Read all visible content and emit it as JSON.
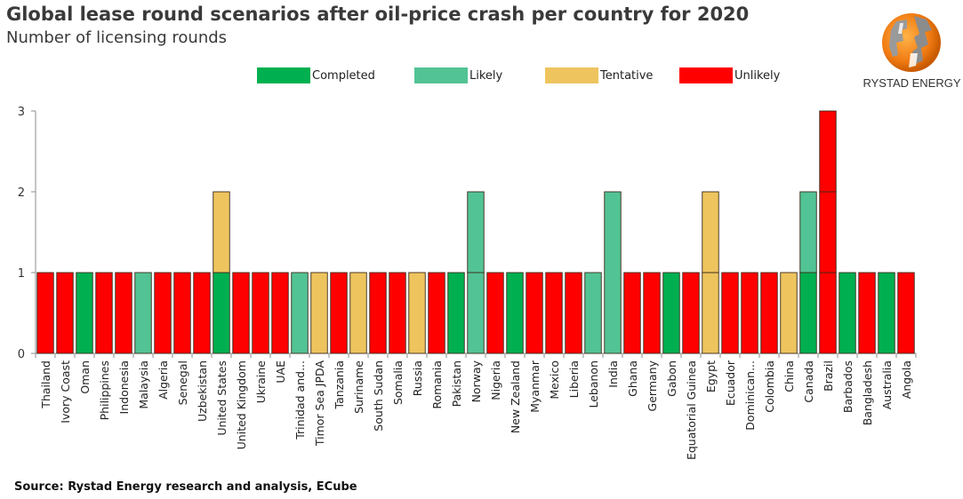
{
  "header": {
    "title": "Global lease round scenarios after oil-price crash per country for 2020",
    "subtitle": "Number of licensing rounds"
  },
  "brand": {
    "logo_icon": "globe-logo-icon",
    "name": "RYSTAD ENERGY"
  },
  "footer": {
    "source": "Source: Rystad Energy research and analysis, ECube"
  },
  "colors": {
    "Completed": "#00b050",
    "Likely": "#52c394",
    "Tentative": "#eec45e",
    "Unlikely": "#ff0000"
  },
  "chart_data": {
    "type": "bar",
    "stacked": true,
    "title": "Global lease round scenarios after oil-price crash per country for 2020",
    "subtitle": "Number of licensing rounds",
    "xlabel": "",
    "ylabel": "",
    "ylim": [
      0,
      3
    ],
    "yticks": [
      0,
      1,
      2,
      3
    ],
    "grid": false,
    "legend": {
      "placement": "top",
      "entries": [
        "Completed",
        "Likely",
        "Tentative",
        "Unlikely"
      ]
    },
    "categories": [
      "Thailand",
      "Ivory Coast",
      "Oman",
      "Philippines",
      "Indonesia",
      "Malaysia",
      "Algeria",
      "Senegal",
      "Uzbekistan",
      "United States",
      "United Kingdom",
      "Ukraine",
      "UAE",
      "Trinidad and...",
      "Timor Sea JPDA",
      "Tanzania",
      "Suriname",
      "South Sudan",
      "Somalia",
      "Russia",
      "Romania",
      "Pakistan",
      "Norway",
      "Nigeria",
      "New Zealand",
      "Myanmar",
      "Mexico",
      "Liberia",
      "Lebanon",
      "India",
      "Ghana",
      "Germany",
      "Gabon",
      "Equatorial Guinea",
      "Egypt",
      "Ecuador",
      "Dominican...",
      "Colombia",
      "China",
      "Canada",
      "Brazil",
      "Barbados",
      "Bangladesh",
      "Australia",
      "Angola"
    ],
    "stacks": [
      [
        {
          "status": "Unlikely",
          "value": 1
        }
      ],
      [
        {
          "status": "Unlikely",
          "value": 1
        }
      ],
      [
        {
          "status": "Completed",
          "value": 1
        }
      ],
      [
        {
          "status": "Unlikely",
          "value": 1
        }
      ],
      [
        {
          "status": "Unlikely",
          "value": 1
        }
      ],
      [
        {
          "status": "Likely",
          "value": 1
        }
      ],
      [
        {
          "status": "Unlikely",
          "value": 1
        }
      ],
      [
        {
          "status": "Unlikely",
          "value": 1
        }
      ],
      [
        {
          "status": "Unlikely",
          "value": 1
        }
      ],
      [
        {
          "status": "Completed",
          "value": 1
        },
        {
          "status": "Tentative",
          "value": 1
        }
      ],
      [
        {
          "status": "Unlikely",
          "value": 1
        }
      ],
      [
        {
          "status": "Unlikely",
          "value": 1
        }
      ],
      [
        {
          "status": "Unlikely",
          "value": 1
        }
      ],
      [
        {
          "status": "Likely",
          "value": 1
        }
      ],
      [
        {
          "status": "Tentative",
          "value": 1
        }
      ],
      [
        {
          "status": "Unlikely",
          "value": 1
        }
      ],
      [
        {
          "status": "Tentative",
          "value": 1
        }
      ],
      [
        {
          "status": "Unlikely",
          "value": 1
        }
      ],
      [
        {
          "status": "Unlikely",
          "value": 1
        }
      ],
      [
        {
          "status": "Tentative",
          "value": 1
        }
      ],
      [
        {
          "status": "Unlikely",
          "value": 1
        }
      ],
      [
        {
          "status": "Completed",
          "value": 1
        }
      ],
      [
        {
          "status": "Likely",
          "value": 1
        },
        {
          "status": "Likely",
          "value": 1
        }
      ],
      [
        {
          "status": "Unlikely",
          "value": 1
        }
      ],
      [
        {
          "status": "Completed",
          "value": 1
        }
      ],
      [
        {
          "status": "Unlikely",
          "value": 1
        }
      ],
      [
        {
          "status": "Unlikely",
          "value": 1
        }
      ],
      [
        {
          "status": "Unlikely",
          "value": 1
        }
      ],
      [
        {
          "status": "Likely",
          "value": 1
        }
      ],
      [
        {
          "status": "Likely",
          "value": 2
        }
      ],
      [
        {
          "status": "Unlikely",
          "value": 1
        }
      ],
      [
        {
          "status": "Unlikely",
          "value": 1
        }
      ],
      [
        {
          "status": "Completed",
          "value": 1
        }
      ],
      [
        {
          "status": "Unlikely",
          "value": 1
        }
      ],
      [
        {
          "status": "Tentative",
          "value": 1
        },
        {
          "status": "Tentative",
          "value": 1
        }
      ],
      [
        {
          "status": "Unlikely",
          "value": 1
        }
      ],
      [
        {
          "status": "Unlikely",
          "value": 1
        }
      ],
      [
        {
          "status": "Unlikely",
          "value": 1
        }
      ],
      [
        {
          "status": "Tentative",
          "value": 1
        }
      ],
      [
        {
          "status": "Completed",
          "value": 1
        },
        {
          "status": "Likely",
          "value": 1
        }
      ],
      [
        {
          "status": "Unlikely",
          "value": 1
        },
        {
          "status": "Unlikely",
          "value": 1
        },
        {
          "status": "Unlikely",
          "value": 1
        }
      ],
      [
        {
          "status": "Completed",
          "value": 1
        }
      ],
      [
        {
          "status": "Unlikely",
          "value": 1
        }
      ],
      [
        {
          "status": "Completed",
          "value": 1
        }
      ],
      [
        {
          "status": "Unlikely",
          "value": 1
        }
      ]
    ],
    "series": [
      {
        "name": "Completed",
        "values": [
          0,
          0,
          1,
          0,
          0,
          0,
          0,
          0,
          0,
          1,
          0,
          0,
          0,
          0,
          0,
          0,
          0,
          0,
          0,
          0,
          0,
          1,
          0,
          0,
          1,
          0,
          0,
          0,
          0,
          0,
          0,
          0,
          1,
          0,
          0,
          0,
          0,
          0,
          0,
          1,
          0,
          1,
          0,
          1,
          0
        ]
      },
      {
        "name": "Likely",
        "values": [
          0,
          0,
          0,
          0,
          0,
          1,
          0,
          0,
          0,
          0,
          0,
          0,
          0,
          1,
          0,
          0,
          0,
          0,
          0,
          0,
          0,
          0,
          2,
          0,
          0,
          0,
          0,
          0,
          1,
          2,
          0,
          0,
          0,
          0,
          0,
          0,
          0,
          0,
          0,
          1,
          0,
          0,
          0,
          0,
          0
        ]
      },
      {
        "name": "Tentative",
        "values": [
          0,
          0,
          0,
          0,
          0,
          0,
          0,
          0,
          0,
          1,
          0,
          0,
          0,
          0,
          1,
          0,
          1,
          0,
          0,
          1,
          0,
          0,
          0,
          0,
          0,
          0,
          0,
          0,
          0,
          0,
          0,
          0,
          0,
          0,
          2,
          0,
          0,
          0,
          1,
          0,
          0,
          0,
          0,
          0,
          0
        ]
      },
      {
        "name": "Unlikely",
        "values": [
          1,
          1,
          0,
          1,
          1,
          0,
          1,
          1,
          1,
          0,
          1,
          1,
          1,
          0,
          0,
          1,
          0,
          1,
          1,
          0,
          1,
          0,
          0,
          1,
          0,
          1,
          1,
          1,
          0,
          0,
          1,
          1,
          0,
          1,
          0,
          1,
          1,
          1,
          0,
          0,
          3,
          0,
          1,
          0,
          1
        ]
      }
    ]
  }
}
